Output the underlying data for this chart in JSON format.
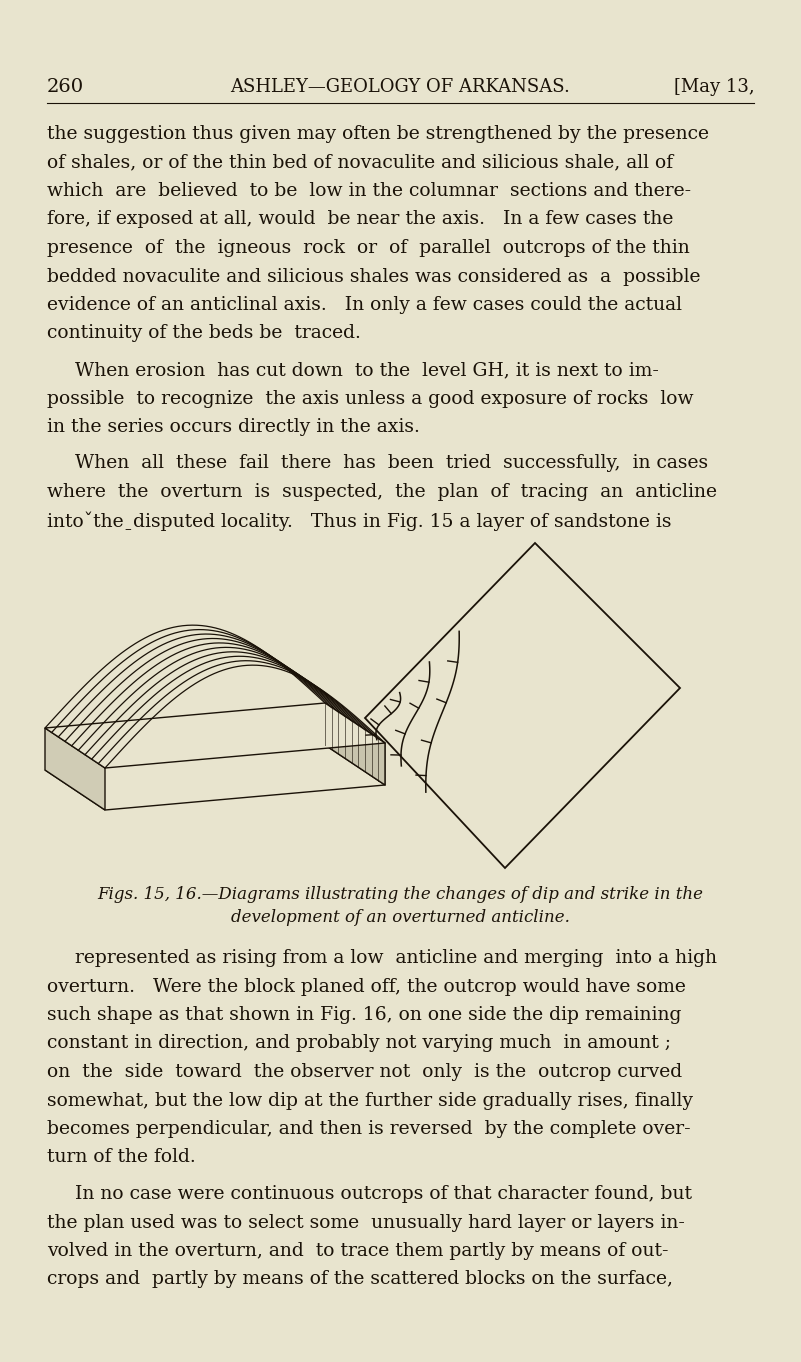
{
  "background_color": "#e8e4ce",
  "page_number": "260",
  "header_center": "ASHLEY—GEOLOGY OF ARKANSAS.",
  "header_right": "[May 13,",
  "body_text": [
    "the suggestion thus given may often be strengthened by the presence",
    "of shales, or of the thin bed of novaculite and silicious shale, all of",
    "which  are  believed  to be  low in the columnar  sections and there-",
    "fore, if exposed at all, would  be near the axis.   In a few cases the",
    "presence  of  the  igneous  rock  or  of  parallel  outcrops of the thin",
    "bedded novaculite and silicious shales was considered as  a  possible",
    "evidence of an anticlinal axis.   In only a few cases could the actual",
    "continuity of the beds be  traced."
  ],
  "para2": [
    "When erosion  has cut down  to the  level GH, it is next to im-",
    "possible  to recognize  the axis unless a good exposure of rocks  low",
    "in the series occurs directly in the axis."
  ],
  "para3": [
    "When  all  these  fail  there  has  been  tried  successfully,  in cases",
    "where  the  overturn  is  suspected,  the  plan  of  tracing  an  anticline",
    "intoˇtheˍdisputed locality.   Thus in Fig. 15 a layer of sandstone is"
  ],
  "caption_line1": "Figs. 15, 16.—Diagrams illustrating the changes of dip and strike in the",
  "caption_line2": "development of an overturned anticline.",
  "para4": [
    "represented as rising from a low  anticline and merging  into a high",
    "overturn.   Were the block planed off, the outcrop would have some",
    "such shape as that shown in Fig. 16, on one side the dip remaining",
    "constant in direction, and probably not varying much  in amount ;",
    "on  the  side  toward  the observer not  only  is the  outcrop curved",
    "somewhat, but the low dip at the further side gradually rises, finally",
    "becomes perpendicular, and then is reversed  by the complete over-",
    "turn of the fold."
  ],
  "para5": [
    "In no case were continuous outcrops of that character found, but",
    "the plan used was to select some  unusually hard layer or layers in-",
    "volved in the overturn, and  to trace them partly by means of out-",
    "crops and  partly by means of the scattered blocks on the surface,"
  ],
  "text_color": "#1a1208",
  "line_color": "#1a1208",
  "fig15_bg": "#e8e4ce",
  "fig15_face_dark": "#d0ccb5",
  "fig15_face_mid": "#c8c4ad"
}
